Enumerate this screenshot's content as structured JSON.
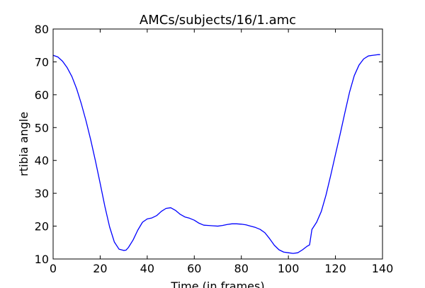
{
  "chart_data": {
    "type": "line",
    "title": "AMCs/subjects/16/1.amc",
    "xlabel": "Time (in frames)",
    "ylabel": "rtibia angle",
    "xlim": [
      0,
      140
    ],
    "ylim": [
      10,
      80
    ],
    "xticks": [
      0,
      20,
      40,
      60,
      80,
      100,
      120,
      140
    ],
    "yticks": [
      10,
      20,
      30,
      40,
      50,
      60,
      70,
      80
    ],
    "xtick_labels": [
      "0",
      "20",
      "40",
      "60",
      "80",
      "100",
      "120",
      "140"
    ],
    "ytick_labels": [
      "10",
      "20",
      "30",
      "40",
      "50",
      "60",
      "70",
      "80"
    ],
    "grid": false,
    "line_color": "#0000ff",
    "series": [
      {
        "x": [
          0,
          2,
          4,
          6,
          8,
          10,
          12,
          14,
          16,
          18,
          20,
          22,
          24,
          26,
          28,
          30,
          31,
          32,
          34,
          36,
          38,
          40,
          42,
          44,
          46,
          48,
          50,
          52,
          54,
          56,
          58,
          60,
          62,
          64,
          66,
          68,
          70,
          72,
          74,
          76,
          78,
          80,
          82,
          84,
          86,
          88,
          90,
          92,
          94,
          96,
          98,
          100,
          102,
          104,
          106,
          108,
          109,
          110,
          112,
          114,
          116,
          118,
          120,
          122,
          124,
          126,
          128,
          130,
          132,
          134,
          136,
          138,
          139
        ],
        "y": [
          72.0,
          71.5,
          70.2,
          68.2,
          65.5,
          61.8,
          57.2,
          52.0,
          46.2,
          39.8,
          33.0,
          26.0,
          19.8,
          15.2,
          13.0,
          12.6,
          12.7,
          13.5,
          15.8,
          18.8,
          21.2,
          22.2,
          22.5,
          23.2,
          24.5,
          25.4,
          25.6,
          24.8,
          23.6,
          22.8,
          22.4,
          21.8,
          20.9,
          20.3,
          20.2,
          20.1,
          20.0,
          20.2,
          20.5,
          20.7,
          20.7,
          20.6,
          20.4,
          20.0,
          19.6,
          19.0,
          18.0,
          16.2,
          14.2,
          12.8,
          12.1,
          11.9,
          11.7,
          11.9,
          12.8,
          13.9,
          14.3,
          19.0,
          21.2,
          24.5,
          29.5,
          35.5,
          41.8,
          48.0,
          54.5,
          60.8,
          65.8,
          69.0,
          70.9,
          71.8,
          72.0,
          72.2,
          72.2
        ]
      }
    ]
  }
}
